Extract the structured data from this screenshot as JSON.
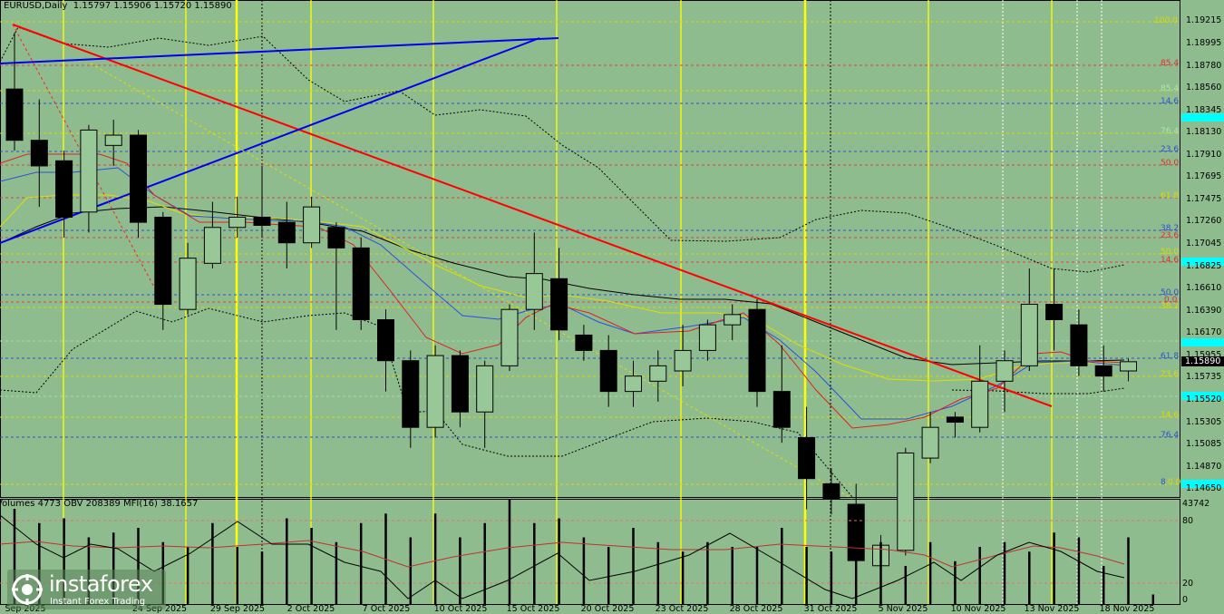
{
  "header": {
    "symbol": "EURUSD,Daily",
    "ohlc": "1.15797 1.15906 1.15720 1.15890"
  },
  "indicator_header": "Volumes 4773  OBV 208389  MFI(16) 38.1657",
  "price_axis": {
    "labels": [
      "1.19215",
      "1.18995",
      "1.18780",
      "1.18560",
      "1.18345",
      "1.18130",
      "1.17910",
      "1.17695",
      "1.17475",
      "1.17260",
      "1.17045",
      "1.16825",
      "1.16610",
      "1.16390",
      "1.16170",
      "1.15955",
      "1.15735",
      "1.15520",
      "1.15305",
      "1.15085",
      "1.14870",
      "1.14650"
    ],
    "current_price": "1.15890"
  },
  "indicator_axis": {
    "labels": [
      "43742",
      "80",
      "20",
      "0"
    ]
  },
  "date_axis": [
    "Sep 2025",
    "24 Sep 2025",
    "29 Sep 2025",
    "2 Oct 2025",
    "7 Oct 2025",
    "10 Oct 2025",
    "15 Oct 2025",
    "20 Oct 2025",
    "23 Oct 2025",
    "28 Oct 2025",
    "31 Oct 2025",
    "5 Nov 2025",
    "10 Nov 2025",
    "13 Nov 2025",
    "18 Nov 2025"
  ],
  "fib_labels": {
    "yellow": [
      "100.0",
      "61.8",
      "50.0",
      "38.2",
      "23.6",
      "14.6",
      "0.0"
    ],
    "red": [
      "85.4",
      "50.0",
      "23.6",
      "14.6",
      "0.0"
    ],
    "blue": [
      "14.6",
      "23.6",
      "38.2",
      "50.0",
      "61.8",
      "76.4",
      "8"
    ],
    "green": [
      "85.4",
      "76.4",
      "61.8"
    ]
  },
  "logo": {
    "name": "instaforex",
    "tagline": "Instant Forex Trading"
  },
  "colors": {
    "background": "#8fbc8f",
    "bull_candle": "#98c898",
    "bear_candle": "#000000",
    "trend_red": "#ff0000",
    "trend_blue": "#0000ff",
    "session_line": "#ffff00",
    "price_highlight": "#00ffff"
  },
  "candles": [
    {
      "o": 1.1855,
      "h": 1.191,
      "l": 1.1795,
      "c": 1.1805
    },
    {
      "o": 1.1805,
      "h": 1.1845,
      "l": 1.174,
      "c": 1.178
    },
    {
      "o": 1.1785,
      "h": 1.1795,
      "l": 1.171,
      "c": 1.173
    },
    {
      "o": 1.1735,
      "h": 1.182,
      "l": 1.1715,
      "c": 1.1815
    },
    {
      "o": 1.18,
      "h": 1.1825,
      "l": 1.178,
      "c": 1.181
    },
    {
      "o": 1.181,
      "h": 1.1815,
      "l": 1.171,
      "c": 1.1725
    },
    {
      "o": 1.173,
      "h": 1.1735,
      "l": 1.162,
      "c": 1.1645
    },
    {
      "o": 1.164,
      "h": 1.1705,
      "l": 1.1635,
      "c": 1.169
    },
    {
      "o": 1.1685,
      "h": 1.1745,
      "l": 1.168,
      "c": 1.172
    },
    {
      "o": 1.172,
      "h": 1.175,
      "l": 1.171,
      "c": 1.173
    },
    {
      "o": 1.173,
      "h": 1.178,
      "l": 1.171,
      "c": 1.1722
    },
    {
      "o": 1.1725,
      "h": 1.1745,
      "l": 1.168,
      "c": 1.1705
    },
    {
      "o": 1.1705,
      "h": 1.175,
      "l": 1.17,
      "c": 1.174
    },
    {
      "o": 1.172,
      "h": 1.1725,
      "l": 1.162,
      "c": 1.17
    },
    {
      "o": 1.17,
      "h": 1.171,
      "l": 1.162,
      "c": 1.163
    },
    {
      "o": 1.163,
      "h": 1.164,
      "l": 1.156,
      "c": 1.159
    },
    {
      "o": 1.159,
      "h": 1.16,
      "l": 1.1505,
      "c": 1.1525
    },
    {
      "o": 1.1525,
      "h": 1.1605,
      "l": 1.1515,
      "c": 1.1595
    },
    {
      "o": 1.1595,
      "h": 1.16,
      "l": 1.1525,
      "c": 1.154
    },
    {
      "o": 1.154,
      "h": 1.159,
      "l": 1.1505,
      "c": 1.1585
    },
    {
      "o": 1.1585,
      "h": 1.1645,
      "l": 1.158,
      "c": 1.164
    },
    {
      "o": 1.164,
      "h": 1.1715,
      "l": 1.162,
      "c": 1.1675
    },
    {
      "o": 1.167,
      "h": 1.17,
      "l": 1.161,
      "c": 1.162
    },
    {
      "o": 1.1615,
      "h": 1.1625,
      "l": 1.159,
      "c": 1.16
    },
    {
      "o": 1.16,
      "h": 1.1615,
      "l": 1.1545,
      "c": 1.156
    },
    {
      "o": 1.156,
      "h": 1.159,
      "l": 1.1545,
      "c": 1.1575
    },
    {
      "o": 1.157,
      "h": 1.16,
      "l": 1.155,
      "c": 1.1585
    },
    {
      "o": 1.158,
      "h": 1.1625,
      "l": 1.1565,
      "c": 1.16
    },
    {
      "o": 1.16,
      "h": 1.163,
      "l": 1.159,
      "c": 1.1625
    },
    {
      "o": 1.1625,
      "h": 1.1645,
      "l": 1.161,
      "c": 1.1635
    },
    {
      "o": 1.164,
      "h": 1.165,
      "l": 1.1545,
      "c": 1.156
    },
    {
      "o": 1.156,
      "h": 1.1605,
      "l": 1.151,
      "c": 1.1525
    },
    {
      "o": 1.1515,
      "h": 1.1545,
      "l": 1.1445,
      "c": 1.1475
    },
    {
      "o": 1.147,
      "h": 1.1485,
      "l": 1.144,
      "c": 1.1455
    },
    {
      "o": 1.145,
      "h": 1.147,
      "l": 1.1385,
      "c": 1.1395
    },
    {
      "o": 1.139,
      "h": 1.142,
      "l": 1.1375,
      "c": 1.141
    },
    {
      "o": 1.1405,
      "h": 1.1505,
      "l": 1.14,
      "c": 1.15
    },
    {
      "o": 1.1495,
      "h": 1.154,
      "l": 1.149,
      "c": 1.1525
    },
    {
      "o": 1.1535,
      "h": 1.154,
      "l": 1.1515,
      "c": 1.153
    },
    {
      "o": 1.1525,
      "h": 1.1605,
      "l": 1.152,
      "c": 1.157
    },
    {
      "o": 1.157,
      "h": 1.16,
      "l": 1.154,
      "c": 1.159
    },
    {
      "o": 1.1585,
      "h": 1.168,
      "l": 1.158,
      "c": 1.1645
    },
    {
      "o": 1.1645,
      "h": 1.168,
      "l": 1.16,
      "c": 1.163
    },
    {
      "o": 1.1625,
      "h": 1.164,
      "l": 1.1575,
      "c": 1.1585
    },
    {
      "o": 1.1585,
      "h": 1.1605,
      "l": 1.156,
      "c": 1.1575
    },
    {
      "o": 1.158,
      "h": 1.1592,
      "l": 1.157,
      "c": 1.1589
    }
  ]
}
